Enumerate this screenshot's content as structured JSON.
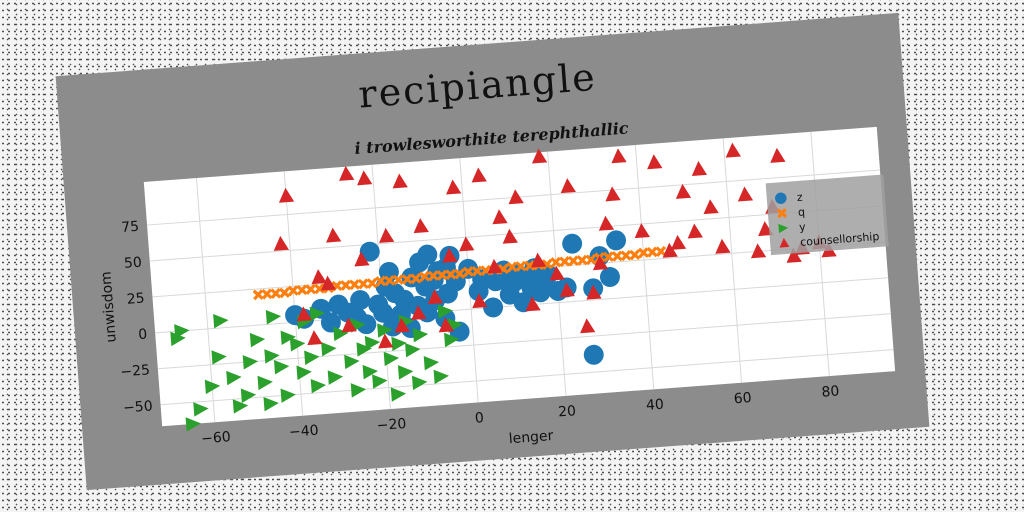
{
  "chart_data": {
    "type": "scatter",
    "title": "recipiangle",
    "subtitle": "i trowlesworthite terephthallic",
    "xlabel": "lenger",
    "ylabel": "unwisdom",
    "xlim": [
      -72,
      95
    ],
    "ylim": [
      -65,
      105
    ],
    "xticks": [
      -60,
      -40,
      -20,
      0,
      20,
      40,
      60,
      80
    ],
    "yticks": [
      -50,
      -25,
      0,
      25,
      50,
      75
    ],
    "grid": true,
    "legend_position": "right",
    "series": [
      {
        "name": "z",
        "marker": "circle",
        "color": "#1f77b4",
        "x": [
          -40,
          -38,
          -34,
          -32,
          -30,
          -28,
          -26,
          -25,
          -24,
          -22,
          -21,
          -20,
          -19,
          -18,
          -18,
          -17,
          -16,
          -15,
          -14,
          -13,
          -12,
          -11,
          -10,
          -10,
          -9,
          -8,
          -8,
          -7,
          -6,
          -5,
          -5,
          -4,
          -3,
          -3,
          0,
          2,
          3,
          5,
          6,
          8,
          9,
          10,
          11,
          12,
          13,
          14,
          15,
          16,
          17,
          18,
          20,
          22,
          24,
          27,
          28,
          30,
          32,
          34
        ],
        "y": [
          5,
          2,
          8,
          -2,
          10,
          4,
          0,
          12,
          -5,
          45,
          8,
          2,
          20,
          -8,
          30,
          15,
          0,
          10,
          -10,
          25,
          5,
          35,
          0,
          18,
          40,
          22,
          8,
          28,
          -5,
          12,
          30,
          38,
          -15,
          20,
          28,
          12,
          20,
          0,
          18,
          25,
          8,
          16,
          22,
          2,
          18,
          12,
          25,
          8,
          15,
          20,
          8,
          10,
          40,
          -38,
          8,
          30,
          15,
          40
        ]
      },
      {
        "name": "q",
        "marker": "x",
        "color": "#ff7f0e",
        "x": [
          -48,
          -46,
          -44,
          -42,
          -40,
          -38,
          -36,
          -34,
          -32,
          -30,
          -28,
          -26,
          -24,
          -22,
          -20,
          -18,
          -16,
          -14,
          -12,
          -10,
          -8,
          -6,
          -4,
          -2,
          0,
          2,
          4,
          6,
          8,
          10,
          12,
          14,
          16,
          18,
          20,
          22,
          24,
          26,
          28,
          30,
          32,
          34,
          36,
          38,
          40,
          42,
          44
        ],
        "y": [
          21,
          21,
          21,
          21,
          22,
          22,
          22,
          22,
          22,
          23,
          23,
          23,
          23,
          23,
          24,
          24,
          24,
          24,
          24,
          25,
          25,
          25,
          25,
          25,
          26,
          26,
          26,
          26,
          26,
          27,
          27,
          27,
          27,
          27,
          28,
          28,
          28,
          28,
          28,
          29,
          29,
          29,
          29,
          29,
          30,
          30,
          30
        ]
      },
      {
        "name": "y",
        "marker": "triangle-right",
        "color": "#2ca02c",
        "x": [
          -67,
          -66,
          -65,
          -63,
          -60,
          -58,
          -57,
          -55,
          -54,
          -52,
          -51,
          -49,
          -48,
          -47,
          -46,
          -45,
          -44,
          -43,
          -42,
          -40,
          -39,
          -38,
          -37,
          -36,
          -35,
          -33,
          -32,
          -30,
          -28,
          -27,
          -26,
          -25,
          -24,
          -23,
          -22,
          -20,
          -19,
          -18,
          -17,
          -16,
          -15,
          -14,
          -13,
          -12,
          -10,
          -8,
          -6,
          -5,
          -4
        ],
        "y": [
          -5,
          0,
          -65,
          -55,
          -40,
          -20,
          5,
          -35,
          -55,
          -48,
          -25,
          -10,
          -40,
          -55,
          -22,
          5,
          -30,
          -50,
          -10,
          -15,
          -35,
          0,
          -25,
          -45,
          5,
          -20,
          -40,
          -10,
          -30,
          -50,
          -5,
          -22,
          -38,
          -18,
          -45,
          -10,
          -30,
          -55,
          -20,
          -40,
          -5,
          -25,
          -48,
          -15,
          -35,
          -45,
          0,
          -20,
          -10
        ]
      },
      {
        "name": "counsellorship",
        "marker": "triangle-up",
        "color": "#d62728",
        "x": [
          -42,
          -40,
          -38,
          -36,
          -34,
          -32,
          -30,
          -28,
          -26,
          -24,
          -22,
          -20,
          -18,
          -16,
          -14,
          -12,
          -10,
          -8,
          -6,
          -4,
          -2,
          0,
          2,
          4,
          6,
          8,
          10,
          12,
          14,
          16,
          18,
          20,
          22,
          24,
          26,
          28,
          30,
          32,
          34,
          36,
          40,
          44,
          46,
          48,
          50,
          52,
          54,
          56,
          58,
          62,
          64,
          66,
          68,
          70,
          72,
          74,
          76,
          80,
          82
        ],
        "y": [
          55,
          88,
          5,
          -12,
          30,
          25,
          58,
          -5,
          100,
          40,
          96,
          -18,
          55,
          -8,
          92,
          0,
          60,
          10,
          -10,
          38,
          85,
          45,
          5,
          92,
          28,
          62,
          48,
          75,
          0,
          30,
          102,
          20,
          8,
          80,
          -18,
          5,
          25,
          52,
          72,
          98,
          45,
          92,
          30,
          35,
          70,
          42,
          85,
          58,
          30,
          96,
          65,
          25,
          40,
          55,
          90,
          20,
          25,
          28,
          22
        ]
      }
    ]
  }
}
